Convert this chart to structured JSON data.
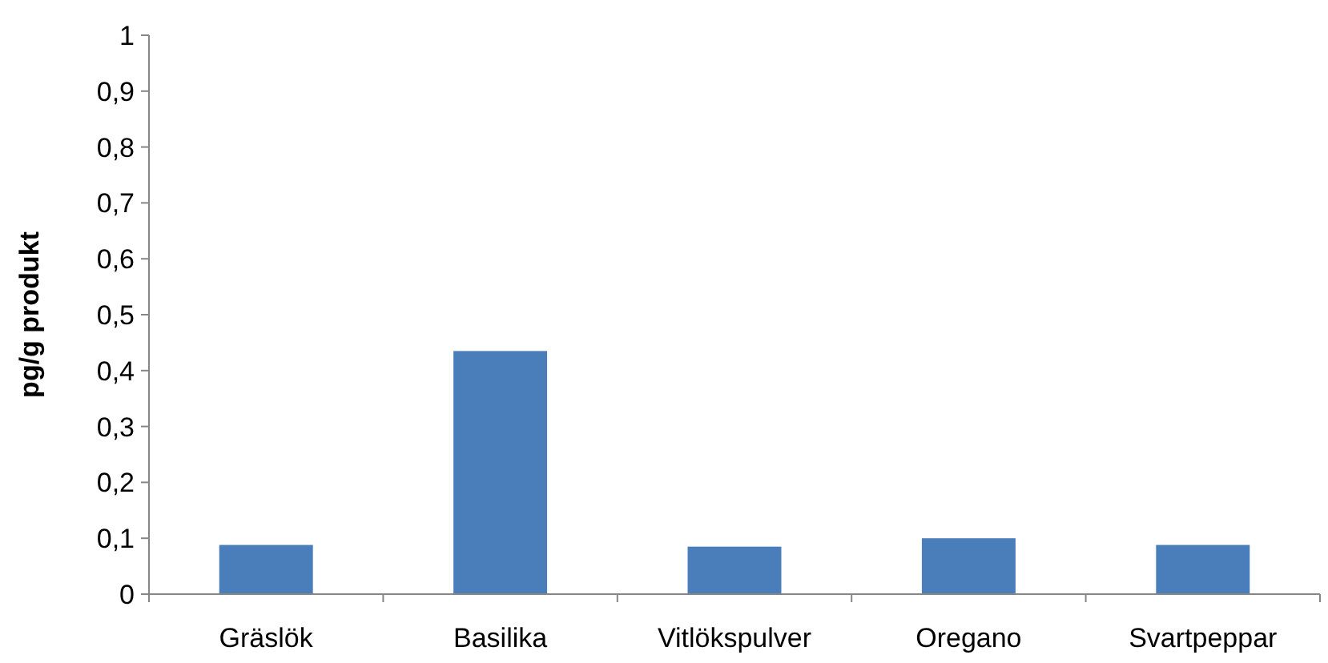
{
  "chart_data": {
    "type": "bar",
    "ylabel": "pg/g produkt",
    "categories": [
      "Gräslök",
      "Basilika",
      "Vitlökspulver",
      "Oregano",
      "Svartpeppar"
    ],
    "values": [
      0.088,
      0.435,
      0.085,
      0.1,
      0.088
    ],
    "color": "#4a7ebb",
    "ylim": [
      0,
      1
    ],
    "yticks": [
      0,
      {
        "value": 0.1,
        "label": "0,1"
      },
      {
        "value": 0.2,
        "label": "0,2"
      },
      {
        "value": 0.3,
        "label": "0,3"
      },
      {
        "value": 0.4,
        "label": "0,4"
      },
      {
        "value": 0.5,
        "label": "0,5"
      },
      {
        "value": 0.6,
        "label": "0,6"
      },
      {
        "value": 0.7,
        "label": "0,7"
      },
      {
        "value": 0.8,
        "label": "0,8"
      },
      {
        "value": 0.9,
        "label": "0,9"
      },
      1
    ],
    "grid": false
  }
}
